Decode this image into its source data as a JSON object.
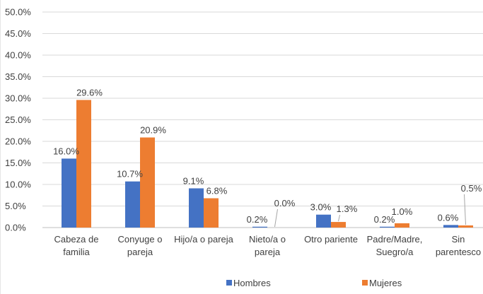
{
  "chart_data": {
    "type": "bar",
    "title": "",
    "xlabel": "",
    "ylabel": "",
    "ylim": [
      0,
      50
    ],
    "y_ticks": [
      "0.0%",
      "5.0%",
      "10.0%",
      "15.0%",
      "20.0%",
      "25.0%",
      "30.0%",
      "35.0%",
      "40.0%",
      "45.0%",
      "50.0%"
    ],
    "categories": [
      [
        "Cabeza de",
        "familia"
      ],
      [
        "Conyuge o",
        "pareja"
      ],
      [
        "Hijo/a o pareja"
      ],
      [
        "Nieto/a o",
        "pareja"
      ],
      [
        "Otro pariente"
      ],
      [
        "Padre/Madre,",
        "Suegro/a"
      ],
      [
        "Sin",
        "parentesco"
      ]
    ],
    "series": [
      {
        "name": "Hombres",
        "color": "#4472C4",
        "values": [
          16.0,
          10.7,
          9.1,
          0.2,
          3.0,
          0.2,
          0.6
        ],
        "labels": [
          "16.0%",
          "10.7%",
          "9.1%",
          "0.2%",
          "3.0%",
          "0.2%",
          "0.6%"
        ]
      },
      {
        "name": "Mujeres",
        "color": "#ED7D31",
        "values": [
          29.6,
          20.9,
          6.8,
          0.0,
          1.3,
          1.0,
          0.5
        ],
        "labels": [
          "29.6%",
          "20.9%",
          "6.8%",
          "0.0%",
          "1.3%",
          "1.0%",
          "0.5%"
        ]
      }
    ],
    "grid": true,
    "legend_position": "bottom"
  }
}
